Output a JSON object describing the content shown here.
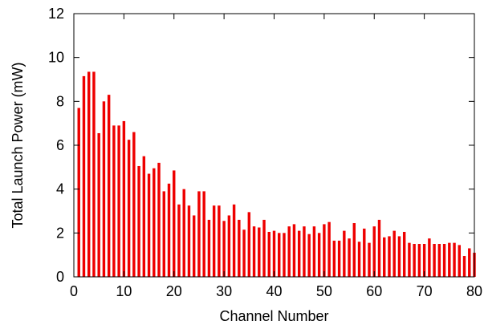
{
  "chart_data": {
    "type": "bar",
    "xlabel": "Channel Number",
    "ylabel": "Total Launch Power (mW)",
    "xlim": [
      0,
      80
    ],
    "ylim": [
      0,
      12
    ],
    "x_ticks": [
      0,
      10,
      20,
      30,
      40,
      50,
      60,
      70,
      80
    ],
    "y_ticks": [
      0,
      2,
      4,
      6,
      8,
      10,
      12
    ],
    "bar_color": "#ee0000",
    "grid": false,
    "x": [
      1,
      2,
      3,
      4,
      5,
      6,
      7,
      8,
      9,
      10,
      11,
      12,
      13,
      14,
      15,
      16,
      17,
      18,
      19,
      20,
      21,
      22,
      23,
      24,
      25,
      26,
      27,
      28,
      29,
      30,
      31,
      32,
      33,
      34,
      35,
      36,
      37,
      38,
      39,
      40,
      41,
      42,
      43,
      44,
      45,
      46,
      47,
      48,
      49,
      50,
      51,
      52,
      53,
      54,
      55,
      56,
      57,
      58,
      59,
      60,
      61,
      62,
      63,
      64,
      65,
      66,
      67,
      68,
      69,
      70,
      71,
      72,
      73,
      74,
      75,
      76,
      77,
      78,
      79,
      80
    ],
    "values": [
      7.7,
      9.15,
      9.35,
      9.35,
      6.55,
      8.0,
      8.3,
      6.9,
      6.9,
      7.1,
      6.25,
      6.6,
      5.05,
      5.5,
      4.7,
      4.95,
      5.2,
      3.9,
      4.25,
      4.85,
      3.3,
      4.0,
      3.25,
      2.8,
      3.9,
      3.9,
      2.6,
      3.25,
      3.25,
      2.55,
      2.8,
      3.3,
      2.6,
      2.15,
      2.95,
      2.3,
      2.25,
      2.6,
      2.05,
      2.1,
      2.0,
      2.0,
      2.3,
      2.4,
      2.1,
      2.3,
      1.95,
      2.3,
      2.0,
      2.4,
      2.5,
      1.65,
      1.65,
      2.1,
      1.75,
      2.45,
      1.6,
      2.2,
      1.55,
      2.3,
      2.6,
      1.8,
      1.85,
      2.1,
      1.85,
      2.05,
      1.55,
      1.5,
      1.5,
      1.5,
      1.75,
      1.5,
      1.5,
      1.5,
      1.55,
      1.55,
      1.45,
      0.95,
      1.3,
      1.1
    ]
  }
}
